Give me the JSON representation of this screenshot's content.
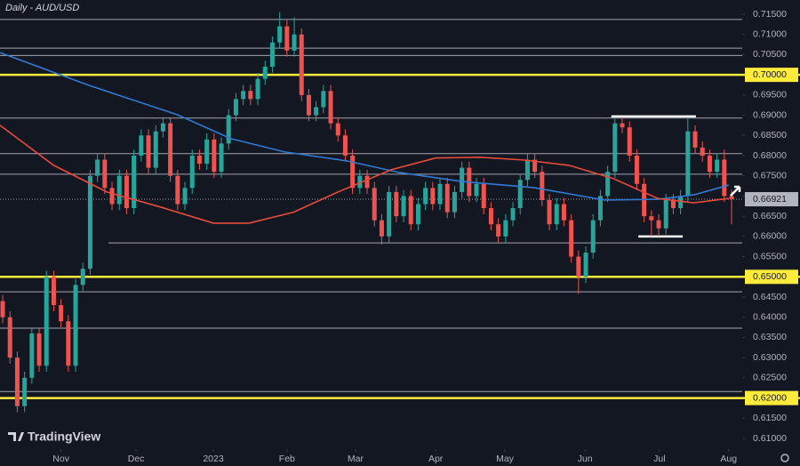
{
  "chart_data": {
    "type": "candlestick",
    "title": "Daily - AUD/USD",
    "watermark": "TradingView",
    "up_color": "#26a69a",
    "down_color": "#ef5350",
    "candles": {
      "open": [
        0.644,
        0.64,
        0.63,
        0.618,
        0.625,
        0.636,
        0.628,
        0.65,
        0.643,
        0.639,
        0.628,
        0.648,
        0.652,
        0.675,
        0.679,
        0.672,
        0.668,
        0.675,
        0.667,
        0.68,
        0.685,
        0.677,
        0.686,
        0.688,
        0.675,
        0.668,
        0.672,
        0.68,
        0.678,
        0.684,
        0.676,
        0.683,
        0.69,
        0.694,
        0.696,
        0.694,
        0.699,
        0.702,
        0.708,
        0.712,
        0.706,
        0.71,
        0.695,
        0.69,
        0.692,
        0.696,
        0.688,
        0.685,
        0.68,
        0.672,
        0.675,
        0.672,
        0.664,
        0.66,
        0.671,
        0.665,
        0.67,
        0.663,
        0.668,
        0.672,
        0.668,
        0.673,
        0.666,
        0.671,
        0.677,
        0.67,
        0.673,
        0.667,
        0.663,
        0.66,
        0.664,
        0.667,
        0.674,
        0.679,
        0.676,
        0.669,
        0.663,
        0.668,
        0.664,
        0.655,
        0.65,
        0.656,
        0.664,
        0.67,
        0.676,
        0.688,
        0.687,
        0.68,
        0.673,
        0.665,
        0.664,
        0.662,
        0.669,
        0.667,
        0.67,
        0.686,
        0.682,
        0.68,
        0.676,
        0.679,
        0.67
      ],
      "high": [
        0.6455,
        0.6415,
        0.6315,
        0.6265,
        0.6375,
        0.6375,
        0.6515,
        0.6515,
        0.6445,
        0.6405,
        0.6495,
        0.6535,
        0.6765,
        0.6805,
        0.6805,
        0.6735,
        0.6765,
        0.6765,
        0.6815,
        0.6865,
        0.6865,
        0.6875,
        0.6895,
        0.6895,
        0.6765,
        0.6735,
        0.6815,
        0.6815,
        0.6855,
        0.6855,
        0.6845,
        0.6915,
        0.6955,
        0.6975,
        0.6975,
        0.7005,
        0.7035,
        0.7095,
        0.7155,
        0.7135,
        0.7142,
        0.7115,
        0.6965,
        0.6935,
        0.6975,
        0.6975,
        0.6895,
        0.6865,
        0.6815,
        0.6765,
        0.6765,
        0.6735,
        0.6655,
        0.6725,
        0.6725,
        0.6715,
        0.6715,
        0.6695,
        0.6735,
        0.6735,
        0.6745,
        0.6745,
        0.6725,
        0.6785,
        0.6785,
        0.6745,
        0.6745,
        0.6685,
        0.6645,
        0.6655,
        0.6685,
        0.6755,
        0.6805,
        0.6805,
        0.6775,
        0.6705,
        0.6695,
        0.6695,
        0.6655,
        0.6565,
        0.6575,
        0.6655,
        0.6715,
        0.6775,
        0.6895,
        0.6895,
        0.6885,
        0.6815,
        0.6745,
        0.6665,
        0.6655,
        0.6705,
        0.6705,
        0.6715,
        0.6895,
        0.6875,
        0.6835,
        0.6815,
        0.6805,
        0.6815,
        0.6715
      ],
      "low": [
        0.6385,
        0.6285,
        0.6165,
        0.6165,
        0.6235,
        0.6265,
        0.6265,
        0.6415,
        0.6375,
        0.6265,
        0.6265,
        0.6465,
        0.6505,
        0.6735,
        0.6705,
        0.6665,
        0.6665,
        0.6655,
        0.6655,
        0.6785,
        0.6755,
        0.6755,
        0.6845,
        0.6735,
        0.6665,
        0.6665,
        0.6705,
        0.6765,
        0.6765,
        0.6745,
        0.6745,
        0.6815,
        0.6885,
        0.6925,
        0.6925,
        0.6925,
        0.6975,
        0.7005,
        0.7065,
        0.7045,
        0.7045,
        0.6935,
        0.6885,
        0.6885,
        0.6905,
        0.6865,
        0.6835,
        0.6785,
        0.6705,
        0.6705,
        0.6705,
        0.6625,
        0.658,
        0.6585,
        0.6635,
        0.6635,
        0.6615,
        0.6615,
        0.6665,
        0.6665,
        0.6665,
        0.6645,
        0.6645,
        0.6695,
        0.6685,
        0.6685,
        0.6655,
        0.6615,
        0.6585,
        0.6585,
        0.6625,
        0.6655,
        0.6725,
        0.6745,
        0.6675,
        0.6615,
        0.6615,
        0.6625,
        0.6535,
        0.6458,
        0.6485,
        0.6545,
        0.6625,
        0.6685,
        0.6745,
        0.6855,
        0.6785,
        0.6715,
        0.6635,
        0.66,
        0.66,
        0.6605,
        0.6655,
        0.6655,
        0.6685,
        0.6805,
        0.6785,
        0.6745,
        0.6745,
        0.6685,
        0.663
      ],
      "close": [
        0.64,
        0.63,
        0.618,
        0.625,
        0.636,
        0.628,
        0.65,
        0.643,
        0.639,
        0.628,
        0.648,
        0.652,
        0.675,
        0.679,
        0.672,
        0.668,
        0.675,
        0.667,
        0.68,
        0.685,
        0.677,
        0.686,
        0.688,
        0.675,
        0.668,
        0.672,
        0.68,
        0.678,
        0.684,
        0.676,
        0.683,
        0.69,
        0.694,
        0.696,
        0.694,
        0.699,
        0.702,
        0.708,
        0.712,
        0.706,
        0.71,
        0.695,
        0.69,
        0.692,
        0.696,
        0.688,
        0.685,
        0.68,
        0.672,
        0.675,
        0.672,
        0.664,
        0.66,
        0.671,
        0.665,
        0.67,
        0.663,
        0.668,
        0.672,
        0.668,
        0.673,
        0.666,
        0.671,
        0.677,
        0.67,
        0.673,
        0.667,
        0.663,
        0.66,
        0.664,
        0.667,
        0.674,
        0.679,
        0.676,
        0.669,
        0.663,
        0.668,
        0.664,
        0.655,
        0.65,
        0.656,
        0.664,
        0.67,
        0.676,
        0.688,
        0.687,
        0.68,
        0.673,
        0.665,
        0.664,
        0.662,
        0.669,
        0.667,
        0.67,
        0.686,
        0.682,
        0.68,
        0.676,
        0.679,
        0.67,
        0.6692
      ]
    },
    "lines": [
      {
        "color": "#2e7bd6",
        "x": [
          -0.37,
          11.8,
          24,
          31.3,
          38.7,
          47.2,
          54.5,
          63,
          72.8,
          82.6,
          89.9,
          94.8,
          99.6
        ],
        "values": [
          0.7055,
          0.6974,
          0.6901,
          0.6842,
          0.6809,
          0.6787,
          0.6758,
          0.6736,
          0.6721,
          0.669,
          0.6692,
          0.6703,
          0.6727
        ]
      },
      {
        "color": "#e84b3c",
        "x": [
          -0.37,
          7,
          14.3,
          21.6,
          28.9,
          33.8,
          39.9,
          46,
          53.3,
          59.4,
          65.5,
          71.6,
          77.7,
          83.8,
          89.9,
          94.8,
          99.6
        ],
        "values": [
          0.6875,
          0.6776,
          0.671,
          0.6673,
          0.6633,
          0.6633,
          0.666,
          0.671,
          0.6765,
          0.6794,
          0.6796,
          0.6789,
          0.6776,
          0.6743,
          0.6694,
          0.6683,
          0.6694
        ]
      }
    ],
    "key_levels": {
      "color": "#ffeb3b",
      "values": [
        0.7,
        0.65,
        0.62
      ]
    },
    "minor_levels": {
      "color": "#c8cad0",
      "values": [
        0.7137,
        0.7066,
        0.7048,
        0.6893,
        0.6805,
        0.6754,
        0.6584,
        0.6463,
        0.6373,
        0.6216
      ],
      "from": [
        null,
        null,
        null,
        null,
        null,
        null,
        14.5,
        null,
        null,
        null
      ]
    },
    "segments": [
      {
        "value": 0.6897,
        "x": [
          83.5,
          95.1
        ]
      },
      {
        "value": 0.66,
        "x": [
          87.2,
          93.3
        ]
      }
    ],
    "last_price": 0.66921,
    "xlim": [
      -0.37,
      101.46
    ],
    "ylim": [
      0.60736,
      0.71852
    ],
    "xticks": [
      {
        "value": 8,
        "label": "Nov"
      },
      {
        "value": 18.3,
        "label": "Dec"
      },
      {
        "value": 28.9,
        "label": "2023"
      },
      {
        "value": 39,
        "label": "Feb"
      },
      {
        "value": 48.4,
        "label": "Mar"
      },
      {
        "value": 59.4,
        "label": "Apr"
      },
      {
        "value": 68.9,
        "label": "May"
      },
      {
        "value": 79.9,
        "label": "Jun"
      },
      {
        "value": 90.1,
        "label": "Jul"
      },
      {
        "value": 99.6,
        "label": "Aug"
      }
    ],
    "yticks": [
      {
        "value": 0.61,
        "label": "0.61000"
      },
      {
        "value": 0.615,
        "label": "0.61500"
      },
      {
        "value": 0.62,
        "label": "0.62000"
      },
      {
        "value": 0.625,
        "label": "0.62500"
      },
      {
        "value": 0.63,
        "label": "0.63000"
      },
      {
        "value": 0.635,
        "label": "0.63500"
      },
      {
        "value": 0.64,
        "label": "0.64000"
      },
      {
        "value": 0.645,
        "label": "0.64500"
      },
      {
        "value": 0.65,
        "label": "0.65000"
      },
      {
        "value": 0.655,
        "label": "0.65500"
      },
      {
        "value": 0.66,
        "label": "0.66000"
      },
      {
        "value": 0.665,
        "label": "0.66500"
      },
      {
        "value": 0.67,
        "label": "0.67000"
      },
      {
        "value": 0.675,
        "label": "0.67500"
      },
      {
        "value": 0.68,
        "label": "0.68000"
      },
      {
        "value": 0.685,
        "label": "0.68500"
      },
      {
        "value": 0.69,
        "label": "0.69000"
      },
      {
        "value": 0.695,
        "label": "0.69500"
      },
      {
        "value": 0.7,
        "label": "0.70000"
      },
      {
        "value": 0.705,
        "label": "0.70500"
      },
      {
        "value": 0.71,
        "label": "0.71000"
      },
      {
        "value": 0.715,
        "label": "0.71500"
      }
    ]
  }
}
